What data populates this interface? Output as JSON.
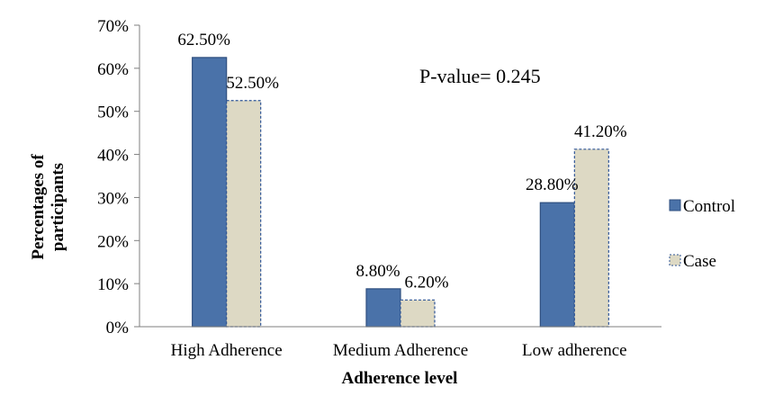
{
  "chart_data": {
    "type": "bar",
    "title": "",
    "xlabel": "Adherence level",
    "ylabel": "Percentages of participants",
    "ylabel_lines": [
      "Percentages of",
      "participants"
    ],
    "categories": [
      "High Adherence",
      "Medium Adherence",
      "Low adherence"
    ],
    "series": [
      {
        "name": "Control",
        "values": [
          62.5,
          8.8,
          28.8
        ],
        "labels": [
          "62.50%",
          "8.80%",
          "28.80%"
        ],
        "color": "#4a72a9",
        "border": "#2f4f7f",
        "dashed": false
      },
      {
        "name": "Case",
        "values": [
          52.5,
          6.2,
          41.2
        ],
        "labels": [
          "52.50%",
          "6.20%",
          "41.20%"
        ],
        "color": "#ddd9c4",
        "border": "#2f5597",
        "dashed": true
      }
    ],
    "ylim": [
      0,
      70
    ],
    "yticks": [
      0,
      10,
      20,
      30,
      40,
      50,
      60,
      70
    ],
    "ytick_labels": [
      "0%",
      "10%",
      "20%",
      "30%",
      "40%",
      "50%",
      "60%",
      "70%"
    ],
    "grid": false,
    "legend_position": "right",
    "annotation": "P-value= 0.245"
  }
}
